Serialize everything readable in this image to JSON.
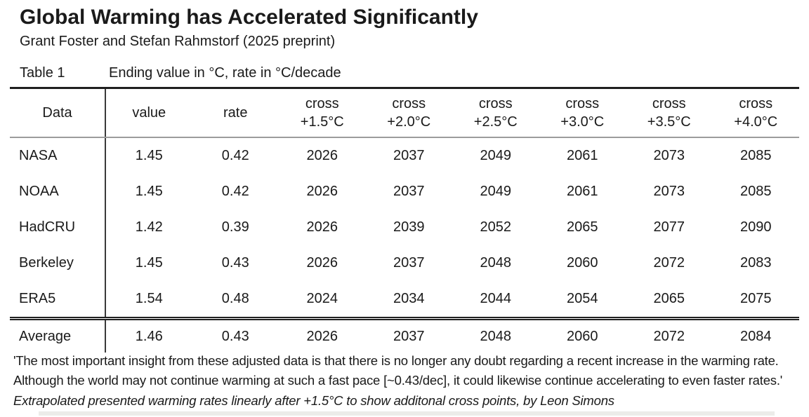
{
  "page": {
    "title": "Global Warming has Accelerated Significantly",
    "subtitle": "Grant Foster and Stefan Rahmstorf (2025 preprint)"
  },
  "table": {
    "label": "Table 1",
    "caption": "Ending value in °C, rate in °C/decade",
    "col_data": "Data",
    "col_value": "value",
    "col_rate": "rate",
    "cross_label": "cross",
    "thresholds": [
      "+1.5°C",
      "+2.0°C",
      "+2.5°C",
      "+3.0°C",
      "+3.5°C",
      "+4.0°C"
    ],
    "rows": [
      [
        "NASA",
        "1.45",
        "0.42",
        "2026",
        "2037",
        "2049",
        "2061",
        "2073",
        "2085"
      ],
      [
        "NOAA",
        "1.45",
        "0.42",
        "2026",
        "2037",
        "2049",
        "2061",
        "2073",
        "2085"
      ],
      [
        "HadCRU",
        "1.42",
        "0.39",
        "2026",
        "2039",
        "2052",
        "2065",
        "2077",
        "2090"
      ],
      [
        "Berkeley",
        "1.45",
        "0.43",
        "2026",
        "2037",
        "2048",
        "2060",
        "2072",
        "2083"
      ],
      [
        "ERA5",
        "1.54",
        "0.48",
        "2024",
        "2034",
        "2044",
        "2054",
        "2065",
        "2075"
      ]
    ],
    "average_row": [
      "Average",
      "1.46",
      "0.43",
      "2026",
      "2037",
      "2048",
      "2060",
      "2072",
      "2084"
    ]
  },
  "footer": {
    "quote_line1": "'The most important insight from these adjusted data is that there is no longer any doubt regarding a recent increase in the warming rate.",
    "quote_line2": "Although the world may not continue warming at such a fast pace [~0.43/dec], it could likewise continue accelerating to even faster rates.'",
    "credit": "Extrapolated presented warming rates linearly after +1.5°C to show additonal cross points, by Leon Simons"
  },
  "colors": {
    "background": "#ffffff",
    "text": "#1a1a1a",
    "border_strong": "#1f1f1f",
    "border_header_rule": "#9c9c9c"
  },
  "chart_data": {
    "type": "table",
    "title": "Global Warming has Accelerated Significantly",
    "subtitle": "Grant Foster and Stefan Rahmstorf (2025 preprint)",
    "caption": "Table 1 — Ending value in °C, rate in °C/decade",
    "units": {
      "value": "°C",
      "rate": "°C/decade",
      "cross_columns": "year"
    },
    "columns": [
      "Data",
      "value",
      "rate",
      "cross +1.5°C",
      "cross +2.0°C",
      "cross +2.5°C",
      "cross +3.0°C",
      "cross +3.5°C",
      "cross +4.0°C"
    ],
    "rows": [
      [
        "NASA",
        1.45,
        0.42,
        2026,
        2037,
        2049,
        2061,
        2073,
        2085
      ],
      [
        "NOAA",
        1.45,
        0.42,
        2026,
        2037,
        2049,
        2061,
        2073,
        2085
      ],
      [
        "HadCRU",
        1.42,
        0.39,
        2026,
        2039,
        2052,
        2065,
        2077,
        2090
      ],
      [
        "Berkeley",
        1.45,
        0.43,
        2026,
        2037,
        2048,
        2060,
        2072,
        2083
      ],
      [
        "ERA5",
        1.54,
        0.48,
        2024,
        2034,
        2044,
        2054,
        2065,
        2075
      ],
      [
        "Average",
        1.46,
        0.43,
        2026,
        2037,
        2048,
        2060,
        2072,
        2084
      ]
    ],
    "note_quote": "'The most important insight from these adjusted data is that there is no longer any doubt regarding a recent increase in the warming rate. Although the world may not continue warming at such a fast pace [~0.43/dec], it could likewise continue accelerating to even faster rates.'",
    "note_credit": "Extrapolated presented warming rates linearly after +1.5°C to show additonal cross points, by Leon Simons"
  }
}
